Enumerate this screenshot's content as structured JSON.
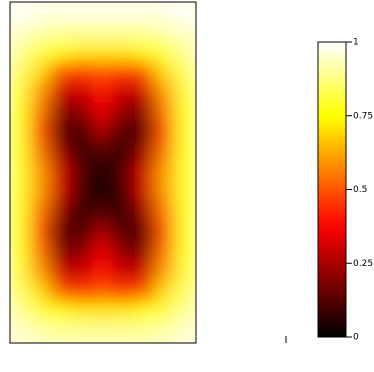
{
  "chart_data": {
    "type": "heatmap",
    "colormap": "hot",
    "clim": [
      0,
      1
    ],
    "cticks": [
      0,
      0.25,
      0.5,
      0.75,
      1
    ],
    "values": [
      [
        1,
        0.98,
        0.98,
        0.98,
        0.98,
        0.98,
        0.98,
        0.98,
        1
      ],
      [
        0.95,
        0.92,
        0.9,
        0.9,
        0.9,
        0.9,
        0.9,
        0.92,
        0.95
      ],
      [
        0.9,
        0.82,
        0.75,
        0.72,
        0.72,
        0.72,
        0.75,
        0.82,
        0.9
      ],
      [
        0.85,
        0.7,
        0.5,
        0.45,
        0.5,
        0.45,
        0.5,
        0.7,
        0.85
      ],
      [
        0.82,
        0.6,
        0.3,
        0.3,
        0.4,
        0.3,
        0.3,
        0.6,
        0.82
      ],
      [
        0.8,
        0.55,
        0.2,
        0.2,
        0.35,
        0.2,
        0.2,
        0.55,
        0.8
      ],
      [
        0.8,
        0.5,
        0.15,
        0.1,
        0.25,
        0.1,
        0.15,
        0.5,
        0.8
      ],
      [
        0.8,
        0.55,
        0.22,
        0.08,
        0.12,
        0.08,
        0.22,
        0.55,
        0.8
      ],
      [
        0.8,
        0.6,
        0.3,
        0.12,
        0.03,
        0.12,
        0.3,
        0.6,
        0.8
      ],
      [
        0.8,
        0.6,
        0.3,
        0.1,
        0.02,
        0.1,
        0.3,
        0.6,
        0.8
      ],
      [
        0.8,
        0.55,
        0.22,
        0.08,
        0.12,
        0.08,
        0.22,
        0.55,
        0.8
      ],
      [
        0.8,
        0.5,
        0.15,
        0.1,
        0.25,
        0.1,
        0.15,
        0.5,
        0.8
      ],
      [
        0.8,
        0.55,
        0.2,
        0.2,
        0.35,
        0.2,
        0.2,
        0.55,
        0.8
      ],
      [
        0.82,
        0.6,
        0.3,
        0.3,
        0.4,
        0.3,
        0.3,
        0.6,
        0.82
      ],
      [
        0.85,
        0.7,
        0.5,
        0.45,
        0.5,
        0.45,
        0.5,
        0.7,
        0.85
      ],
      [
        0.9,
        0.82,
        0.75,
        0.72,
        0.72,
        0.72,
        0.75,
        0.82,
        0.9
      ],
      [
        0.95,
        0.92,
        0.9,
        0.9,
        0.9,
        0.9,
        0.9,
        0.92,
        0.95
      ]
    ]
  }
}
